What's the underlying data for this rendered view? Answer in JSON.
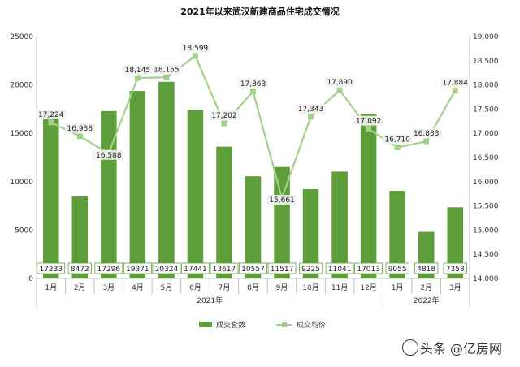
{
  "chart_data": {
    "type": "bar",
    "title": "2021年以来武汉新建商品住宅成交情况",
    "categories": [
      "1月",
      "2月",
      "3月",
      "4月",
      "5月",
      "6月",
      "7月",
      "8月",
      "9月",
      "10月",
      "11月",
      "12月",
      "1月",
      "2月",
      "3月"
    ],
    "year_groups": [
      {
        "label": "2021年",
        "count": 12
      },
      {
        "label": "2022年",
        "count": 3
      }
    ],
    "series": [
      {
        "name": "成交套数",
        "type": "bar",
        "axis": "left",
        "color": "#5e9e3a",
        "values": [
          17233,
          8472,
          17296,
          19371,
          20324,
          17441,
          13617,
          10557,
          11517,
          9225,
          11041,
          17013,
          9055,
          4818,
          7358
        ]
      },
      {
        "name": "成交均价",
        "type": "line",
        "axis": "right",
        "color": "#a3d08a",
        "values": [
          17224,
          16938,
          16588,
          18145,
          18155,
          18599,
          17202,
          17863,
          15661,
          17343,
          17890,
          17092,
          16710,
          16833,
          17884
        ]
      }
    ],
    "y_left": {
      "min": 0,
      "max": 25000,
      "ticks": [
        "0",
        "5000",
        "10000",
        "15000",
        "20000",
        "25000"
      ]
    },
    "y_right": {
      "min": 14000,
      "max": 19000,
      "ticks": [
        "14,000",
        "14,500",
        "15,000",
        "15,500",
        "16,000",
        "16,500",
        "17,000",
        "17,500",
        "18,000",
        "18,500",
        "19,000"
      ]
    },
    "bar_labels": [
      "17233",
      "8472",
      "17296",
      "19371",
      "20324",
      "17441",
      "13617",
      "10557",
      "11517",
      "9225",
      "11041",
      "17013",
      "9055",
      "4818",
      "7358"
    ],
    "line_labels": [
      "17,224",
      "16,938",
      "16,588",
      "18,145",
      "18,155",
      "18,599",
      "17,202",
      "17,863",
      "15,661",
      "17,343",
      "17,890",
      "17,092",
      "16,710",
      "16,833",
      "17,884"
    ],
    "grid": false,
    "legend_placement": "bottom"
  },
  "watermark": "头条 @亿房网"
}
